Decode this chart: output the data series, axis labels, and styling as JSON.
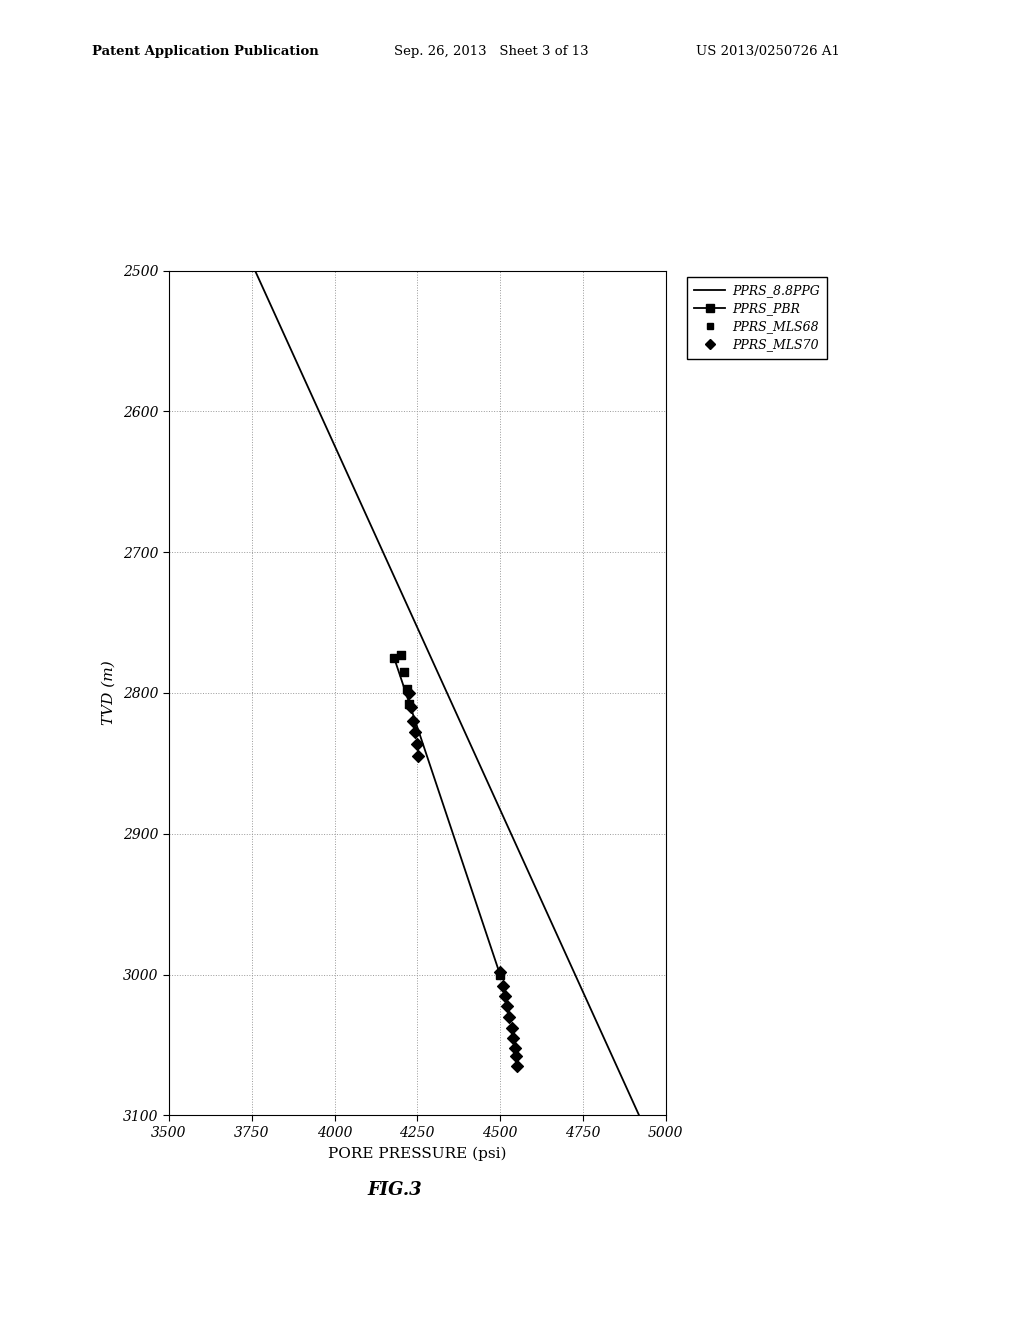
{
  "title": "",
  "xlabel": "PORE PRESSURE (psi)",
  "ylabel": "TVD (m)",
  "xlim": [
    3500,
    5000
  ],
  "ylim": [
    3100,
    2500
  ],
  "xticks": [
    3500,
    3750,
    4000,
    4250,
    4500,
    4750,
    5000
  ],
  "yticks": [
    2500,
    2600,
    2700,
    2800,
    2900,
    3000,
    3100
  ],
  "line_8ppg": {
    "x": [
      3760,
      4920
    ],
    "y": [
      2500,
      3100
    ],
    "color": "#000000",
    "linewidth": 1.3,
    "linestyle": "-",
    "label": "PPRS_8.8PPG"
  },
  "line_pbr": {
    "x": [
      4180,
      4500
    ],
    "y": [
      2775,
      3000
    ],
    "color": "#000000",
    "linewidth": 1.3,
    "linestyle": "-",
    "marker": "s",
    "markersize": 6,
    "label": "PPRS_PBR"
  },
  "mls68_points": {
    "x": [
      4200,
      4210,
      4218,
      4225
    ],
    "y": [
      2773,
      2785,
      2797,
      2808
    ],
    "color": "#000000",
    "marker": "s",
    "markersize": 6,
    "label": "PPRS_MLS68"
  },
  "mls70_points": {
    "x": [
      4225,
      4232,
      4238,
      4244,
      4248,
      4253,
      4500,
      4508,
      4515,
      4522,
      4528,
      4535,
      4540,
      4545,
      4548,
      4552
    ],
    "y": [
      2800,
      2810,
      2820,
      2828,
      2836,
      2845,
      2998,
      3008,
      3015,
      3022,
      3030,
      3038,
      3045,
      3052,
      3058,
      3065
    ],
    "color": "#000000",
    "marker": "D",
    "markersize": 6,
    "label": "PPRS_MLS70"
  },
  "fig_label": "FIG.3",
  "header_left": "Patent Application Publication",
  "header_center": "Sep. 26, 2013   Sheet 3 of 13",
  "header_right": "US 2013/0250726 A1",
  "grid_color": "#999999",
  "grid_linestyle": ":",
  "background_color": "#ffffff",
  "font_family": "serif"
}
